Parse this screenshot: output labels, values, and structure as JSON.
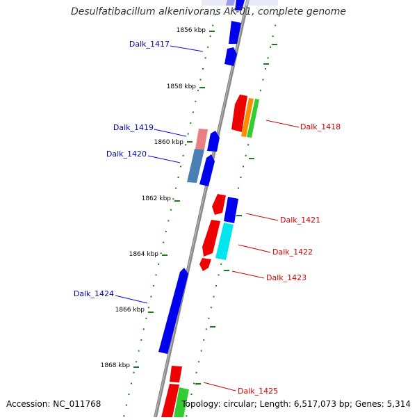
{
  "title": "Desulfatibacillum alkenivorans AK-01, complete genome",
  "accession_text": "Accession: NC_011768",
  "summary_text": "Topology: circular; Length: 6,517,073 bp; Genes: 5,314",
  "ticks": [
    "1856 kbp",
    "1858 kbp",
    "1860 kbp",
    "1862 kbp",
    "1864 kbp",
    "1866 kbp",
    "1868 kbp"
  ],
  "forward_gene_labels": [
    "Dalk_1417",
    "Dalk_1419",
    "Dalk_1420",
    "Dalk_1424"
  ],
  "reverse_gene_labels": [
    "Dalk_1418",
    "Dalk_1421",
    "Dalk_1422",
    "Dalk_1423",
    "Dalk_1425"
  ],
  "colors": {
    "backbone": "#8a8a8a",
    "forward_gene": "#0000ee",
    "reverse_gene": "#ee0000",
    "tick": "#1a7a1a",
    "orange": "#ff8c00",
    "green": "#33cc33",
    "cyan": "#00e5ee",
    "steelblue": "#4a7fb5",
    "pink": "#e88080"
  }
}
